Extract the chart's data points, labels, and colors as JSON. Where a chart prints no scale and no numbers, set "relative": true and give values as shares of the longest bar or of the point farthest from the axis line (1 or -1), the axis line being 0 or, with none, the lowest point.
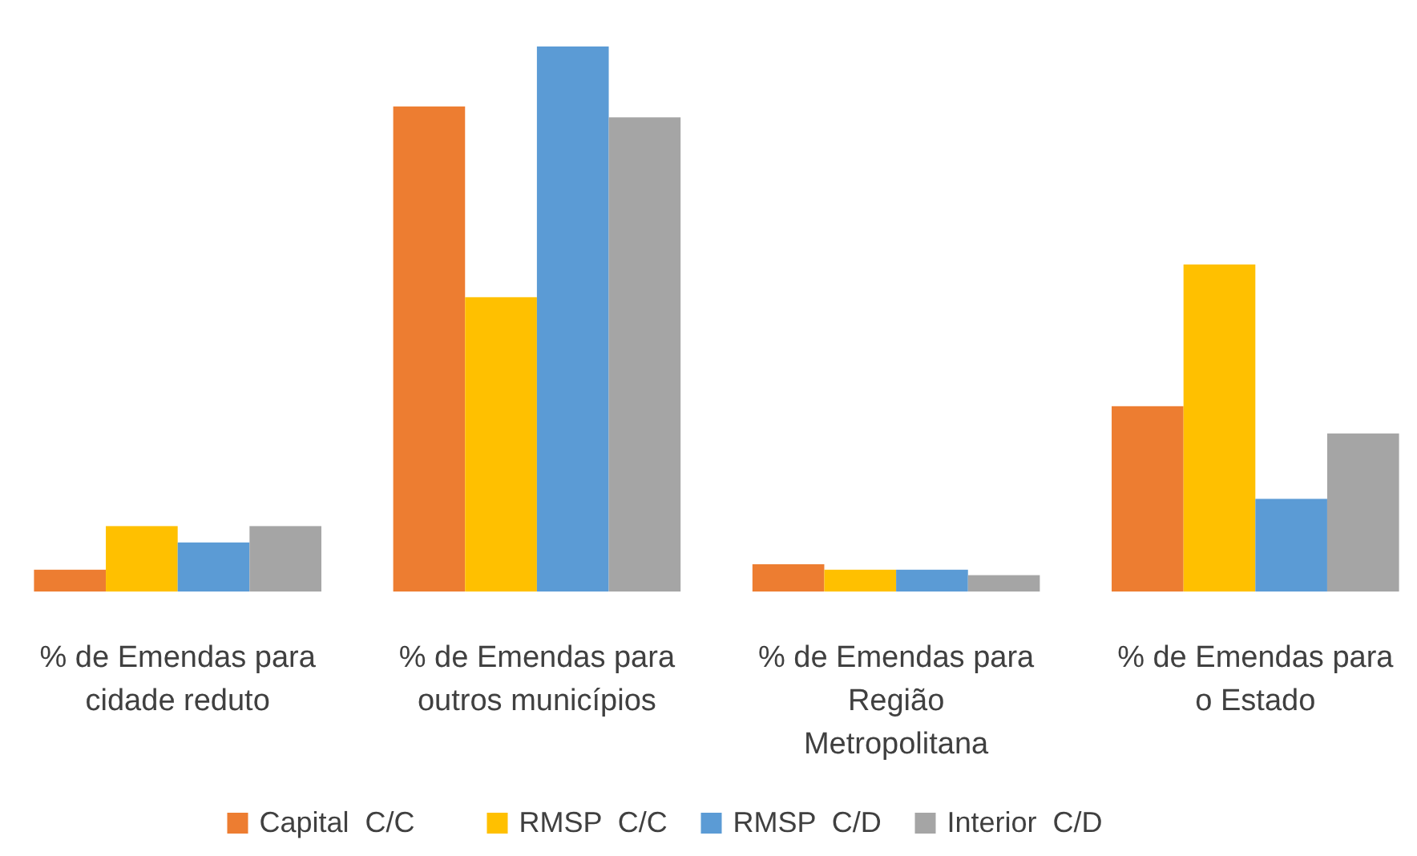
{
  "chart_data": {
    "type": "bar",
    "relative": true,
    "legend": "bottom",
    "categories": [
      "% de Emendas para cidade reduto",
      "% de Emendas para outros municípios",
      "% de Emendas para Região Metropolitana",
      "% de Emendas para o Estado"
    ],
    "series": [
      {
        "name": "Capital  C/C",
        "color": "#ed7d31",
        "values": [
          0.04,
          0.89,
          0.05,
          0.34
        ]
      },
      {
        "name": "RMSP  C/C",
        "color": "#ffc000",
        "values": [
          0.12,
          0.54,
          0.04,
          0.6
        ]
      },
      {
        "name": "RMSP  C/D",
        "color": "#5b9bd5",
        "values": [
          0.09,
          1,
          0.04,
          0.17
        ]
      },
      {
        "name": "Interior  C/D",
        "color": "#a5a5a5",
        "values": [
          0.12,
          0.87,
          0.03,
          0.29
        ]
      }
    ]
  }
}
